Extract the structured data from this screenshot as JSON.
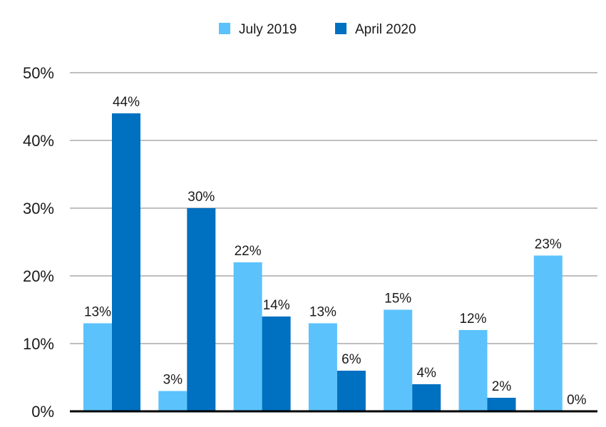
{
  "chart_data": {
    "type": "bar",
    "categories": [
      "",
      "",
      "",
      "",
      "",
      "",
      ""
    ],
    "series": [
      {
        "name": "July 2019",
        "color": "#5BC2FC",
        "values": [
          13,
          3,
          22,
          13,
          15,
          12,
          23
        ]
      },
      {
        "name": "April 2020",
        "color": "#0070C0",
        "values": [
          44,
          30,
          14,
          6,
          4,
          2,
          0
        ]
      }
    ],
    "data_labels": {
      "July 2019": [
        "13%",
        "3%",
        "22%",
        "13%",
        "15%",
        "12%",
        "23%"
      ],
      "April 2020": [
        "44%",
        "30%",
        "14%",
        "6%",
        "4%",
        "2%",
        "0%"
      ]
    },
    "yticks": [
      0,
      10,
      20,
      30,
      40,
      50
    ],
    "ytick_labels": [
      "0%",
      "10%",
      "20%",
      "30%",
      "40%",
      "50%"
    ],
    "ylim": [
      0,
      50
    ],
    "grid": true,
    "legend_position": "top-center",
    "title": "",
    "xlabel": "",
    "ylabel": ""
  }
}
